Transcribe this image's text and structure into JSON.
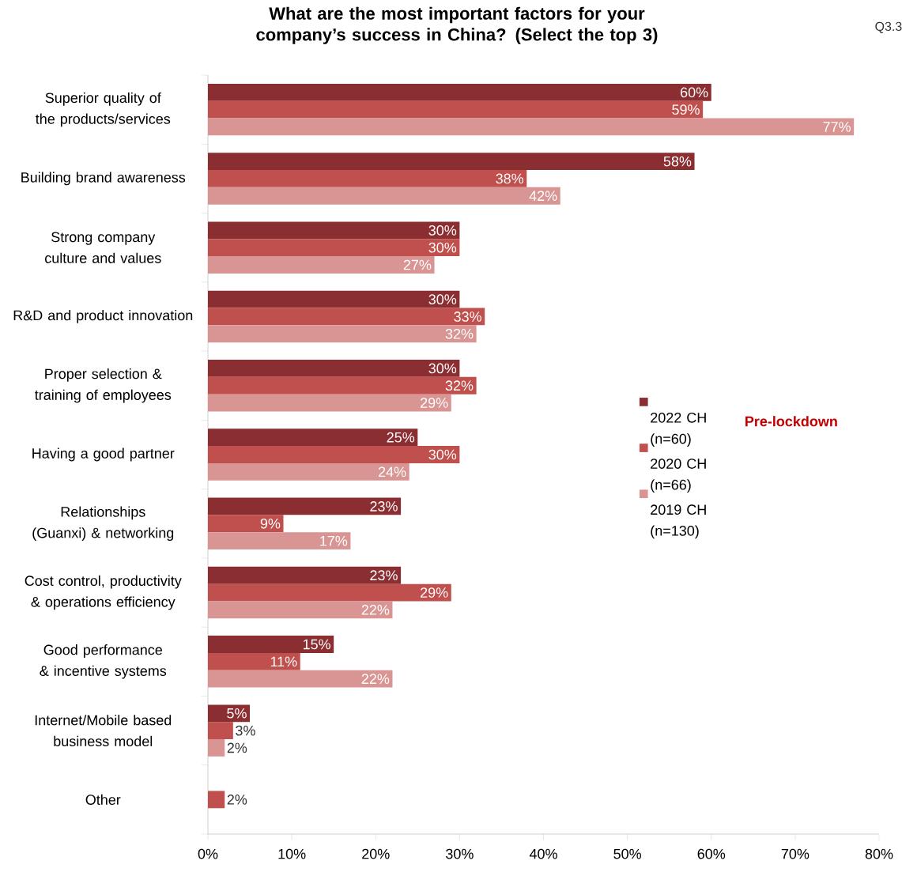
{
  "chart_data": {
    "type": "bar",
    "orientation": "horizontal",
    "title": "What are the most important factors for your company’s success in China? (Select the top 3)",
    "categories": [
      "Superior quality of the products/services",
      "Building brand awareness",
      "Strong company culture and values",
      "R&D and product innovation",
      "Proper selection & training of employees",
      "Having a good partner",
      "Relationships (Guanxi) & networking",
      "Cost control, productivity & operations efficiency",
      "Good performance & incentive systems",
      "Internet/Mobile based business model",
      "Other"
    ],
    "series": [
      {
        "name": "2022 CH (n=60)",
        "color": "#8b2e32",
        "values": [
          60,
          58,
          30,
          30,
          30,
          25,
          23,
          23,
          15,
          5,
          null
        ],
        "value_labels": [
          "60%",
          "58%",
          "30%",
          "30%",
          "30%",
          "25%",
          "23%",
          "23%",
          "15%",
          "5%",
          null
        ]
      },
      {
        "name": "2020 CH (n=66)",
        "color": "#c0504d",
        "values": [
          59,
          38,
          30,
          33,
          32,
          30,
          9,
          29,
          11,
          3,
          2
        ],
        "value_labels": [
          "59%",
          "38%",
          "30%",
          "33%",
          "32%",
          "30%",
          "9%",
          "29%",
          "11%",
          "3%",
          "2%"
        ]
      },
      {
        "name": "2019 CH (n=130)",
        "color": "#d99594",
        "values": [
          77,
          42,
          27,
          32,
          29,
          24,
          17,
          22,
          22,
          2,
          null
        ],
        "value_labels": [
          "77%",
          "42%",
          "27%",
          "32%",
          "29%",
          "24%",
          "17%",
          "22%",
          "22%",
          "2%",
          null
        ]
      }
    ],
    "xlim": [
      0,
      80
    ],
    "xticks": [
      {
        "value": 0,
        "label": "0%"
      },
      {
        "value": 10,
        "label": "10%"
      },
      {
        "value": 20,
        "label": "20%"
      },
      {
        "value": 30,
        "label": "30%"
      },
      {
        "value": 40,
        "label": "40%"
      },
      {
        "value": 50,
        "label": "50%"
      },
      {
        "value": 60,
        "label": "60%"
      },
      {
        "value": 70,
        "label": "70%"
      },
      {
        "value": 80,
        "label": "80%"
      }
    ],
    "grid": false,
    "legend": "right",
    "annotations": [
      "Pre-lockdown",
      "Q3.3"
    ]
  }
}
